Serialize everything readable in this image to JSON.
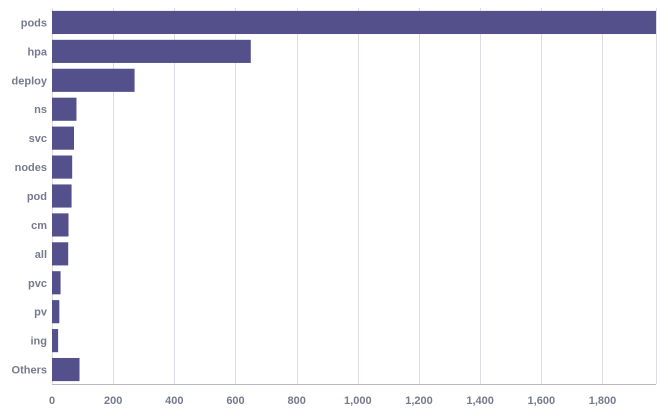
{
  "chart_data": {
    "type": "bar",
    "orientation": "horizontal",
    "categories": [
      "pods",
      "hpa",
      "deploy",
      "ns",
      "svc",
      "nodes",
      "pod",
      "cm",
      "all",
      "pvc",
      "pv",
      "ing",
      "Others"
    ],
    "values": [
      1975,
      650,
      270,
      80,
      72,
      66,
      64,
      54,
      53,
      28,
      24,
      20,
      90
    ],
    "x_ticks": [
      0,
      200,
      400,
      600,
      800,
      1000,
      1200,
      1400,
      1600,
      1800
    ],
    "x_tick_labels": [
      "0",
      "200",
      "400",
      "600",
      "800",
      "1,000",
      "1,200",
      "1,400",
      "1,600",
      "1,800"
    ],
    "xlim": [
      0,
      1975
    ],
    "grid": true,
    "bar_color": "#54508c",
    "title": "",
    "xlabel": "",
    "ylabel": ""
  }
}
